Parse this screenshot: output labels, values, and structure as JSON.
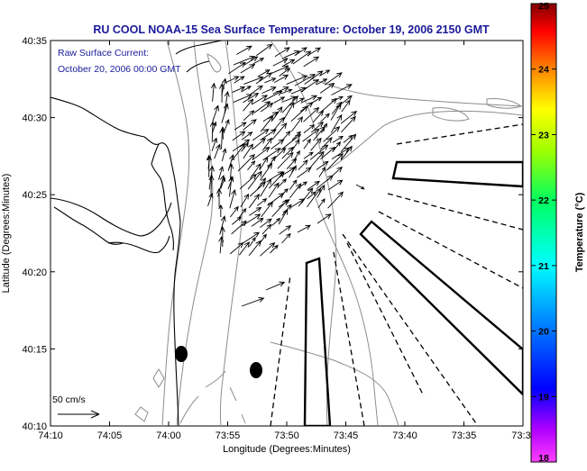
{
  "title": "RU COOL  NOAA-15  Sea Surface Temperature:  October 19, 2006 2150 GMT",
  "annotation": {
    "line1": "Raw Surface Current:",
    "line2": "October 20, 2006 00:00 GMT"
  },
  "scale_label": "50 cm/s",
  "axes": {
    "xlabel": "Longitude (Degrees:Minutes)",
    "ylabel": "Latitude (Degrees:Minutes)",
    "x_ticks": [
      "74:10",
      "74:05",
      "74:00",
      "73:55",
      "73:50",
      "73:45",
      "73:40",
      "73:35",
      "73:3"
    ],
    "y_ticks": [
      "40:35",
      "40:30",
      "40:25",
      "40:20",
      "40:15",
      "40:10"
    ]
  },
  "colorbar": {
    "label": "Temperature (°C)",
    "ticks": [
      "25",
      "24",
      "23",
      "22",
      "21",
      "20",
      "19",
      "18"
    ],
    "range": [
      18,
      25
    ]
  },
  "colors": {
    "title": "#1a1a9a",
    "annotation": "#1a1a9a",
    "land": "#000000",
    "contour": "#8c8c8c",
    "vectors": "#000000"
  }
}
